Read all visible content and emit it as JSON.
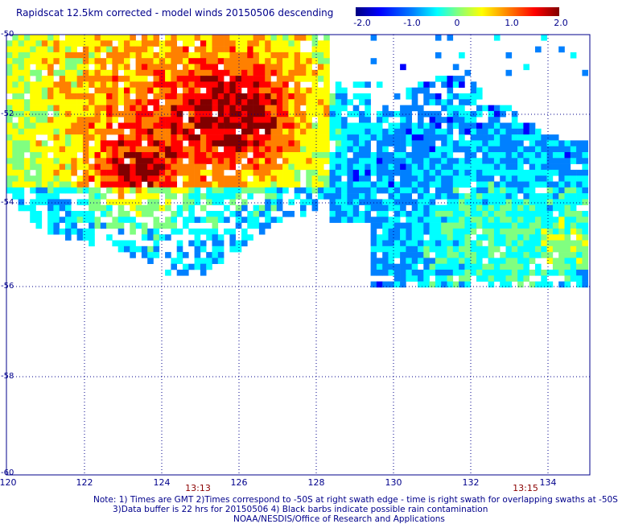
{
  "title": "Rapidscat 12.5km corrected - model winds 20150506 descending",
  "colorbar": {
    "labels": [
      "-2.0",
      "-1.0",
      "0",
      "1.0",
      "2.0"
    ],
    "colors": [
      "#000080",
      "#0000ff",
      "#0080ff",
      "#00ffff",
      "#80ff80",
      "#ffff00",
      "#ff8000",
      "#ff0000",
      "#800000"
    ]
  },
  "axes": {
    "lat_labels": [
      "-50",
      "-52",
      "-54",
      "-56",
      "-58",
      "-60"
    ],
    "lon_labels": [
      "120",
      "122",
      "124",
      "126",
      "128",
      "130",
      "132",
      "134"
    ]
  },
  "times": [
    "13:13",
    "13:15"
  ],
  "notes": [
    "Note: 1) Times are GMT 2)Times correspond to -50S at right swath edge - time is right swath for overlapping swaths at -50S",
    "3)Data buffer is 22 hrs for 20150506 4) Black barbs indicate possible rain contamination",
    "NOAA/NESDIS/Office of Research and Applications"
  ]
}
